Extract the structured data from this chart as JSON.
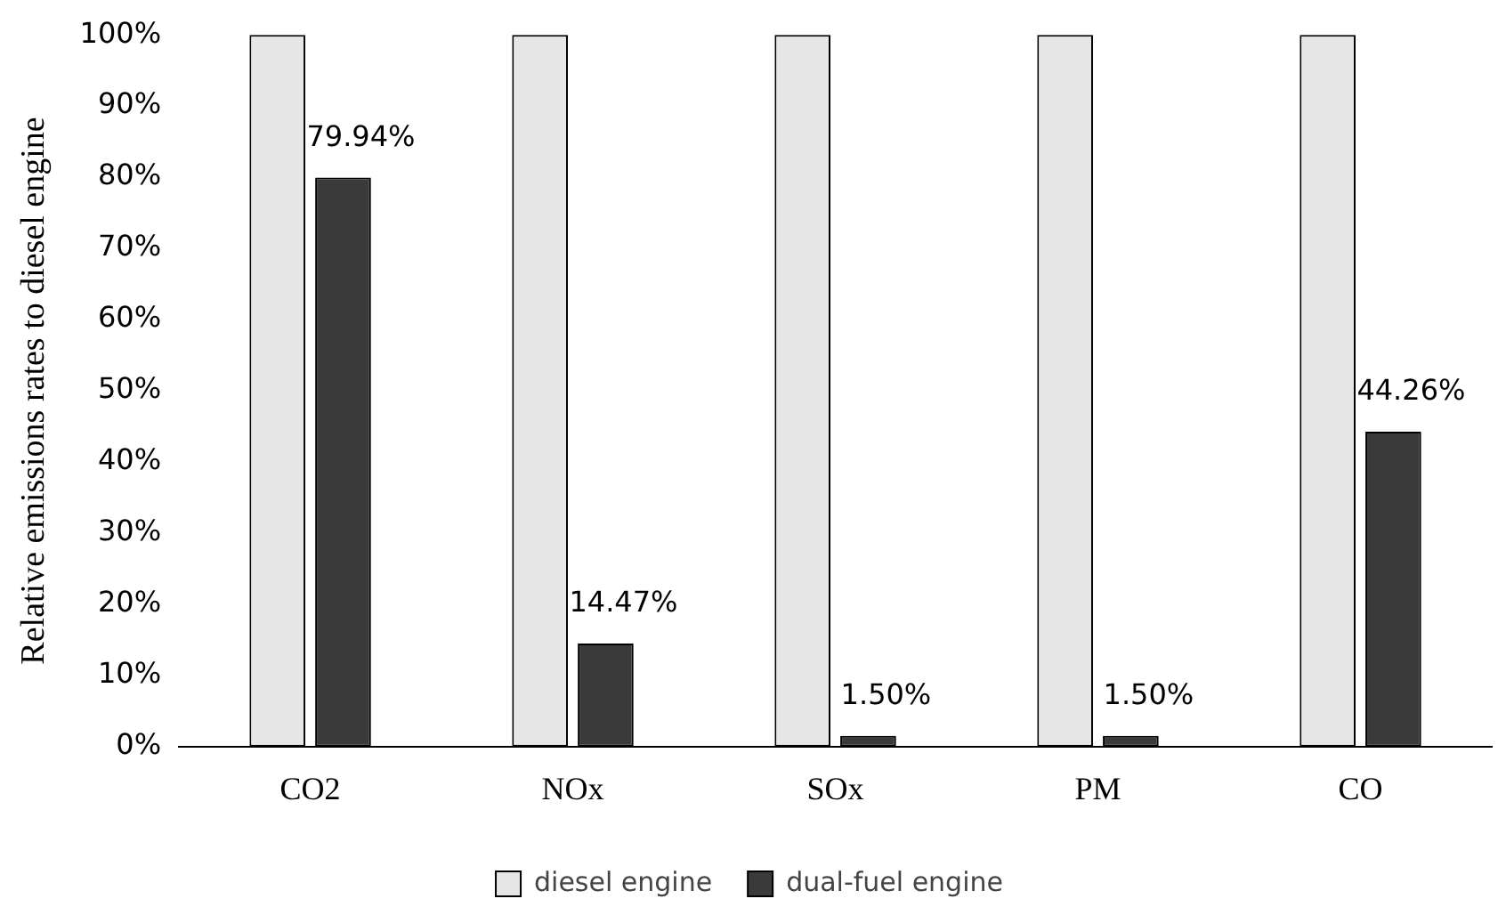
{
  "chart_data": {
    "type": "bar",
    "ylabel": "Relative emissions rates to diesel engine",
    "categories": [
      "CO2",
      "NOx",
      "SOx",
      "PM",
      "CO"
    ],
    "series": [
      {
        "name": "diesel engine",
        "color": "#e6e6e6",
        "values": [
          100,
          100,
          100,
          100,
          100
        ]
      },
      {
        "name": "dual-fuel engine",
        "color": "#3a3a3a",
        "values": [
          79.94,
          14.47,
          1.5,
          1.5,
          44.26
        ],
        "value_labels": [
          "79.94%",
          "14.47%",
          "1.50%",
          "1.50%",
          "44.26%"
        ]
      }
    ],
    "ylim": [
      0,
      100
    ],
    "yticks": [
      {
        "value": 0,
        "label": "0%"
      },
      {
        "value": 10,
        "label": "10%"
      },
      {
        "value": 20,
        "label": "20%"
      },
      {
        "value": 30,
        "label": "30%"
      },
      {
        "value": 40,
        "label": "40%"
      },
      {
        "value": 50,
        "label": "50%"
      },
      {
        "value": 60,
        "label": "60%"
      },
      {
        "value": 70,
        "label": "70%"
      },
      {
        "value": 80,
        "label": "80%"
      },
      {
        "value": 90,
        "label": "90%"
      },
      {
        "value": 100,
        "label": "100%"
      }
    ],
    "grid": false,
    "legend": "bottom"
  }
}
